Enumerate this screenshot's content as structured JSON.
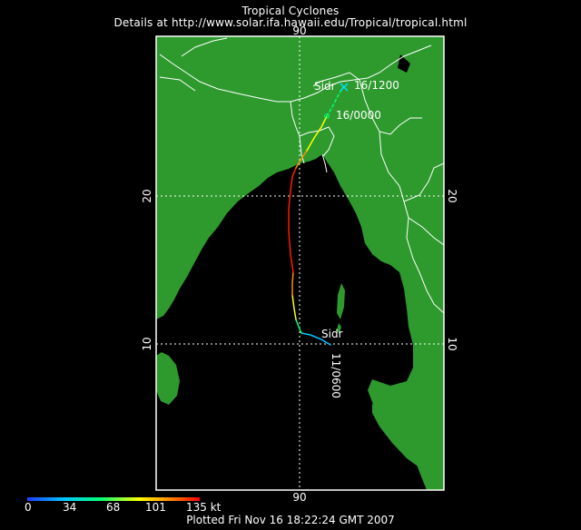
{
  "header": {
    "title": "Tropical Cyclones",
    "details": "Details at http://www.solar.ifa.hawaii.edu/Tropical/tropical.html"
  },
  "map": {
    "land_color": "#2e9a2e",
    "ocean_color": "#000000",
    "border_color": "#ffffff",
    "grid": {
      "latitudes": [
        "20",
        "10"
      ],
      "longitudes": [
        "90"
      ]
    }
  },
  "storm": {
    "name_start": "Sidr",
    "name_end": "Sidr",
    "start_label": "11/0600",
    "mid_label": "16/0000",
    "end_label": "16/1200",
    "end_marker": "x-icon"
  },
  "legend": {
    "ticks": [
      "0",
      "34",
      "68",
      "101",
      "135 kt"
    ],
    "colors": [
      "#1f3cff",
      "#00c8ff",
      "#00ff78",
      "#ffff00",
      "#ff8c00",
      "#ff0000"
    ]
  },
  "footer": {
    "plotted": "Plotted Fri Nov 16 18:22:24 GMT 2007"
  }
}
